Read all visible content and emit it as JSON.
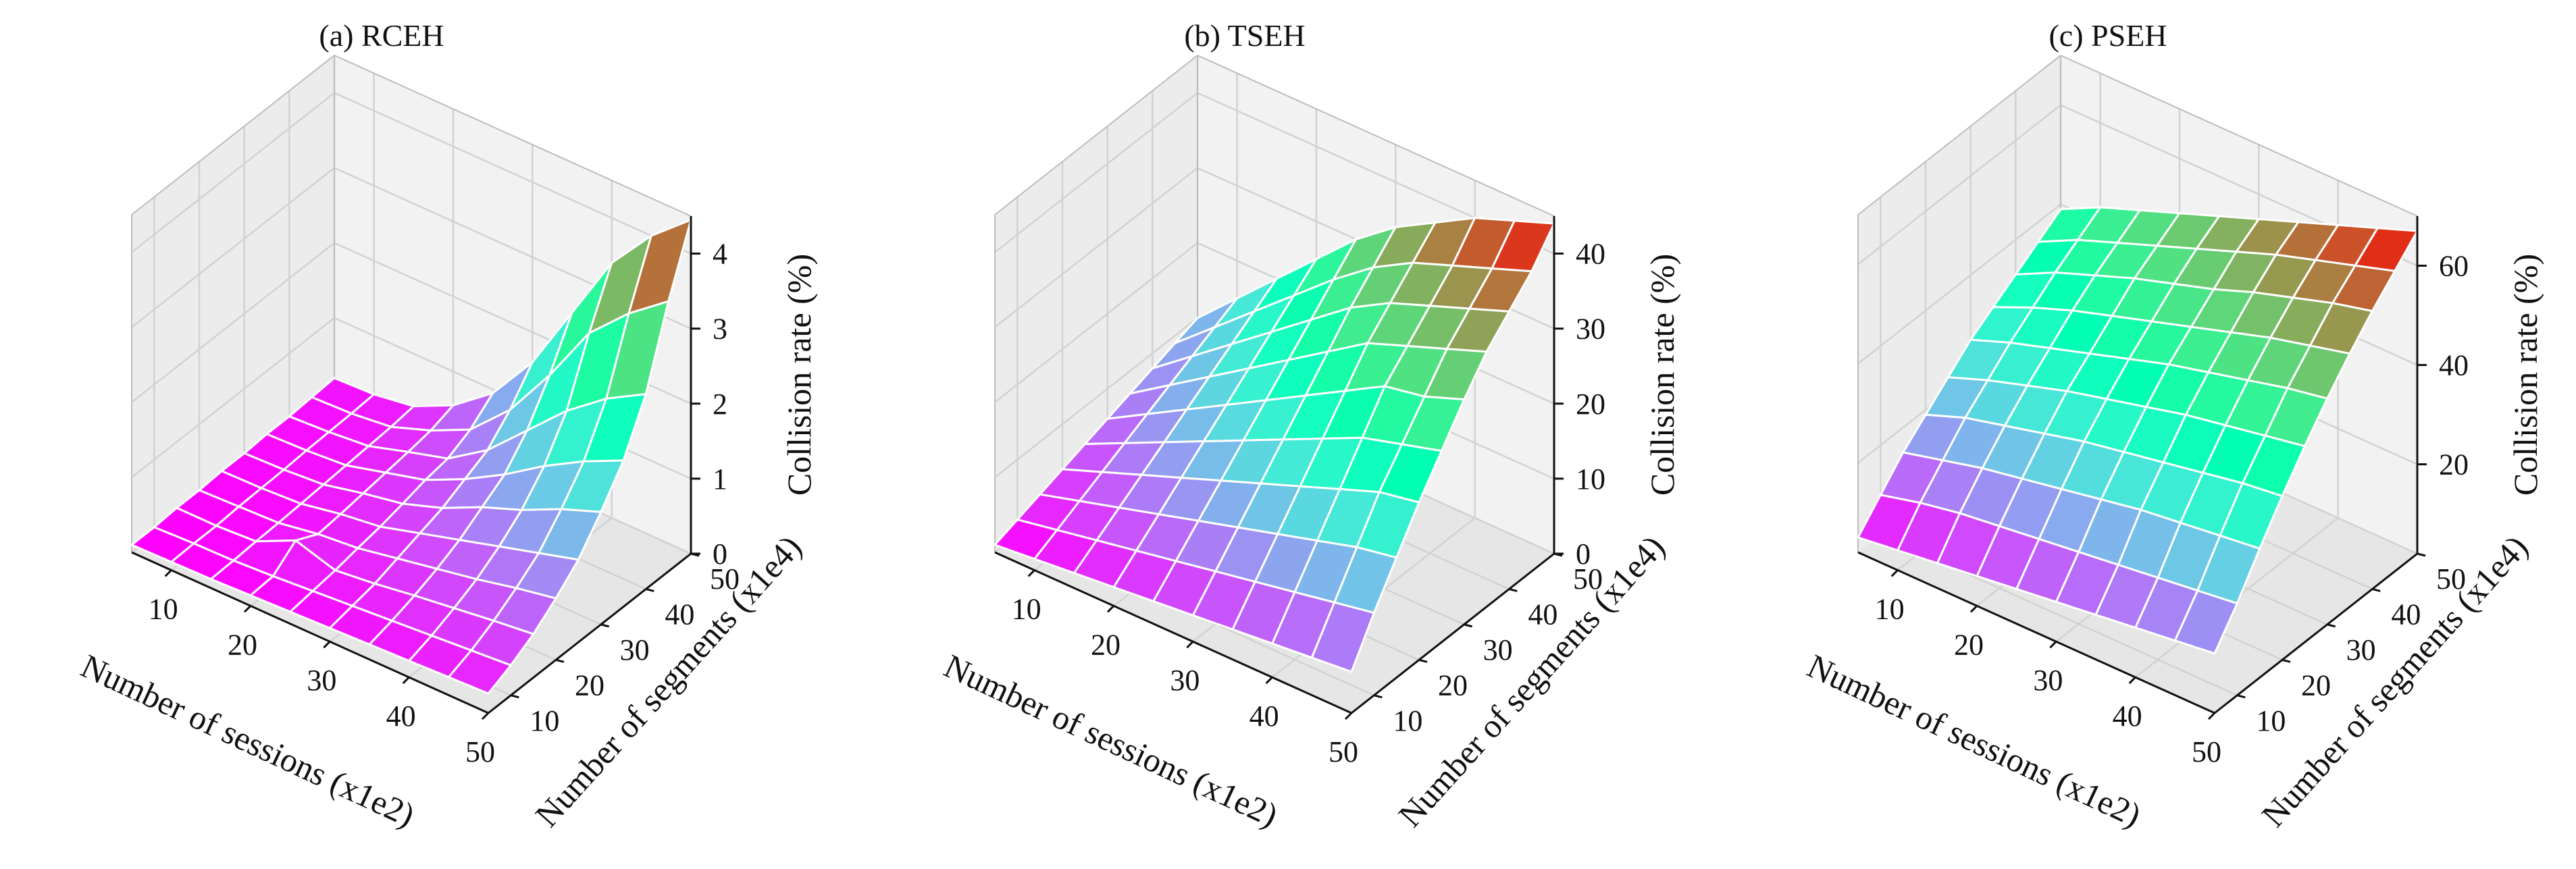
{
  "figure": {
    "colormap": "rainbow",
    "pane_color": "#f2f2f2",
    "grid_color": "#d2d2d2",
    "edge_color": "#ffffff"
  },
  "chart_data": [
    {
      "type": "surface3d",
      "title": "(a) RCEH",
      "xlabel": "Number of sessions (x1e2)",
      "ylabel": "Number of segments (x1e4)",
      "zlabel": "Collision rate (%)",
      "x": [
        5,
        10,
        15,
        20,
        25,
        30,
        35,
        40,
        45,
        50
      ],
      "y": [
        5,
        10,
        15,
        20,
        25,
        30,
        35,
        40,
        45,
        50
      ],
      "xticks": [
        10,
        20,
        30,
        40,
        50
      ],
      "yticks": [
        10,
        20,
        30,
        40,
        50
      ],
      "zticks": [
        0,
        1,
        2,
        3,
        4
      ],
      "zlim": [
        0,
        4.5
      ],
      "z": [
        [
          0.1,
          0.1,
          0.12,
          0.12,
          0.14,
          0.14,
          0.16,
          0.16,
          0.18,
          0.2
        ],
        [
          0.11,
          0.12,
          0.12,
          0.14,
          0.15,
          0.16,
          0.18,
          0.19,
          0.2,
          0.22
        ],
        [
          0.12,
          0.13,
          0.15,
          0.16,
          0.18,
          0.2,
          0.22,
          0.24,
          0.26,
          0.3
        ],
        [
          0.14,
          0.16,
          0.4,
          0.25,
          0.28,
          0.32,
          0.36,
          0.4,
          0.45,
          0.55
        ],
        [
          0.16,
          0.2,
          0.24,
          0.3,
          0.35,
          0.42,
          0.5,
          0.55,
          0.7,
          0.95
        ],
        [
          0.18,
          0.24,
          0.3,
          0.4,
          0.5,
          0.6,
          0.75,
          0.9,
          1.2,
          1.6
        ],
        [
          0.2,
          0.28,
          0.38,
          0.5,
          0.65,
          0.85,
          1.05,
          1.4,
          1.9,
          2.5
        ],
        [
          0.22,
          0.32,
          0.45,
          0.6,
          0.8,
          1.05,
          1.4,
          1.9,
          2.7,
          3.4
        ],
        [
          0.24,
          0.36,
          0.52,
          0.72,
          0.95,
          1.3,
          1.7,
          2.3,
          3.2,
          4.0
        ],
        [
          0.26,
          0.4,
          0.58,
          0.82,
          1.1,
          1.5,
          1.95,
          2.6,
          3.6,
          4.45
        ]
      ]
    },
    {
      "type": "surface3d",
      "title": "(b) TSEH",
      "xlabel": "Number of sessions (x1e2)",
      "ylabel": "Number of segments (x1e4)",
      "zlabel": "Collision rate (%)",
      "x": [
        5,
        10,
        15,
        20,
        25,
        30,
        35,
        40,
        45,
        50
      ],
      "y": [
        5,
        10,
        15,
        20,
        25,
        30,
        35,
        40,
        45,
        50
      ],
      "xticks": [
        10,
        20,
        30,
        40,
        50
      ],
      "yticks": [
        10,
        20,
        30,
        40,
        50
      ],
      "zticks": [
        0,
        10,
        20,
        30,
        40
      ],
      "zlim": [
        0,
        45
      ],
      "z": [
        [
          1.0,
          2.0,
          3.0,
          4.0,
          5.0,
          6.0,
          7.0,
          8.0,
          9.0,
          10.0
        ],
        [
          1.5,
          3.0,
          4.5,
          6.0,
          7.5,
          9.0,
          10.5,
          12.0,
          13.5,
          15.0
        ],
        [
          2.0,
          4.0,
          6.0,
          8.0,
          10.0,
          12.0,
          14.0,
          16.0,
          18.0,
          20.0
        ],
        [
          2.5,
          5.0,
          7.5,
          10.0,
          12.5,
          15.0,
          17.5,
          20.0,
          22.5,
          25.0
        ],
        [
          3.0,
          6.0,
          9.0,
          12.0,
          15.0,
          18.0,
          21.0,
          24.0,
          27.0,
          30.0
        ],
        [
          3.5,
          7.0,
          10.5,
          14.0,
          17.5,
          21.0,
          24.5,
          28.0,
          31.0,
          34.0
        ],
        [
          4.0,
          8.0,
          12.0,
          16.0,
          20.0,
          24.0,
          28.0,
          31.0,
          34.0,
          37.0
        ],
        [
          4.5,
          9.0,
          13.5,
          18.0,
          22.5,
          27.0,
          30.0,
          33.0,
          36.0,
          40.0
        ],
        [
          5.0,
          10.0,
          15.0,
          20.0,
          24.0,
          28.0,
          32.0,
          35.0,
          38.0,
          42.0
        ],
        [
          5.5,
          11.0,
          16.0,
          21.0,
          25.5,
          30.0,
          34.0,
          37.0,
          40.0,
          44.0
        ]
      ]
    },
    {
      "type": "surface3d",
      "title": "(c) PSEH",
      "xlabel": "Number of sessions (x1e2)",
      "ylabel": "Number of segments (x1e4)",
      "zlabel": "Collision rate (%)",
      "x": [
        5,
        10,
        15,
        20,
        25,
        30,
        35,
        40,
        45,
        50
      ],
      "y": [
        5,
        10,
        15,
        20,
        25,
        30,
        35,
        40,
        45,
        50
      ],
      "xticks": [
        10,
        20,
        30,
        40,
        50
      ],
      "yticks": [
        10,
        20,
        30,
        40,
        50
      ],
      "zticks": [
        20,
        40,
        60
      ],
      "zlim": [
        2,
        70
      ],
      "z": [
        [
          5.0,
          10.0,
          15.0,
          19.0,
          23.0,
          27.0,
          30.0,
          33.0,
          36.0,
          39.0
        ],
        [
          6.0,
          12.0,
          17.0,
          22.0,
          26.0,
          30.0,
          33.5,
          37.0,
          40.0,
          43.0
        ],
        [
          7.0,
          13.5,
          19.0,
          24.0,
          28.5,
          32.5,
          36.5,
          40.0,
          43.0,
          46.0
        ],
        [
          8.0,
          14.5,
          20.5,
          26.0,
          31.0,
          35.0,
          39.0,
          43.0,
          46.0,
          49.0
        ],
        [
          9.0,
          15.5,
          22.0,
          28.0,
          33.0,
          37.5,
          41.5,
          45.5,
          49.0,
          52.0
        ],
        [
          10.0,
          16.5,
          23.5,
          29.5,
          35.0,
          40.0,
          44.0,
          48.0,
          52.0,
          55.0
        ],
        [
          11.0,
          17.5,
          25.0,
          31.0,
          37.0,
          42.0,
          46.5,
          51.0,
          55.0,
          58.0
        ],
        [
          12.0,
          18.5,
          26.0,
          32.5,
          38.5,
          44.0,
          49.0,
          53.5,
          57.5,
          61.0
        ],
        [
          13.0,
          19.5,
          27.0,
          34.0,
          40.0,
          46.0,
          51.0,
          56.0,
          60.0,
          64.0
        ],
        [
          14.0,
          20.5,
          28.0,
          35.0,
          41.5,
          47.5,
          53.0,
          58.0,
          62.5,
          67.0
        ]
      ]
    }
  ]
}
